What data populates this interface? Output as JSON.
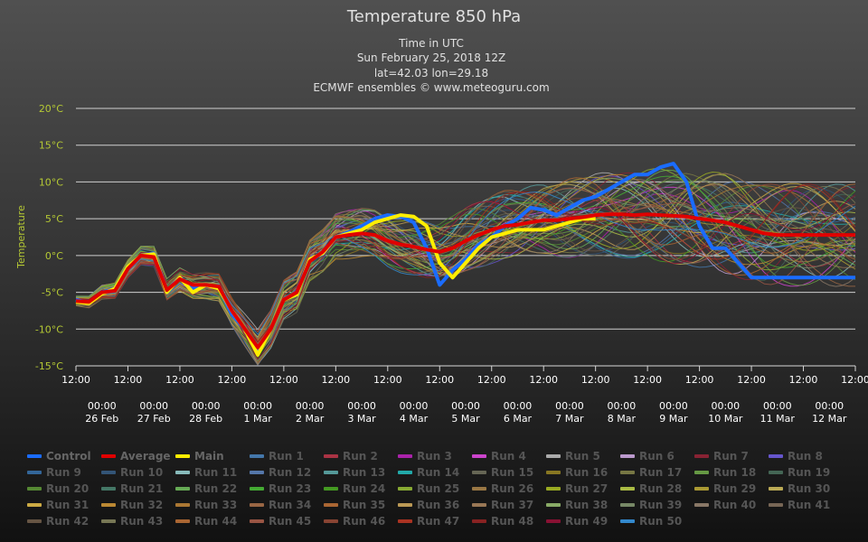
{
  "title": "Temperature 850 hPa",
  "subtitles": [
    "Time in UTC",
    "Sun February 25, 2018 12Z",
    "lat=42.03 lon=29.18",
    "ECMWF ensembles © www.meteoguru.com"
  ],
  "chart_data": {
    "type": "line",
    "ylabel": "Temperature",
    "ylim": [
      -15,
      20
    ],
    "y_ticks": [
      "20°C",
      "15°C",
      "10°C",
      "5°C",
      "0°C",
      "-5°C",
      "-10°C",
      "-15°C"
    ],
    "y_tick_values": [
      20,
      15,
      10,
      5,
      0,
      -5,
      -10,
      -15
    ],
    "x_ticks_top": [
      "12:00",
      "12:00",
      "12:00",
      "12:00",
      "12:00",
      "12:00",
      "12:00",
      "12:00",
      "12:00",
      "12:00",
      "12:00",
      "12:00",
      "12:00",
      "12:00",
      "12:00",
      "12:00"
    ],
    "x_ticks_bottom": [
      [
        "00:00",
        "26 Feb"
      ],
      [
        "00:00",
        "27 Feb"
      ],
      [
        "00:00",
        "28 Feb"
      ],
      [
        "00:00",
        "1 Mar"
      ],
      [
        "00:00",
        "2 Mar"
      ],
      [
        "00:00",
        "3 Mar"
      ],
      [
        "00:00",
        "4 Mar"
      ],
      [
        "00:00",
        "5 Mar"
      ],
      [
        "00:00",
        "6 Mar"
      ],
      [
        "00:00",
        "7 Mar"
      ],
      [
        "00:00",
        "8 Mar"
      ],
      [
        "00:00",
        "9 Mar"
      ],
      [
        "00:00",
        "10 Mar"
      ],
      [
        "00:00",
        "11 Mar"
      ],
      [
        "00:00",
        "12 Mar"
      ]
    ],
    "x_unit": "hours since 25 Feb 12:00 UTC",
    "grid": true,
    "legend_position": "bottom",
    "series": [
      {
        "name": "Control",
        "color": "#1a6cff",
        "x": [
          0,
          6,
          12,
          18,
          24,
          30,
          36,
          42,
          48,
          54,
          60,
          66,
          72,
          78,
          84,
          90,
          96,
          102,
          108,
          114,
          120,
          126,
          132,
          138,
          144,
          150,
          156,
          162,
          168,
          174,
          180,
          186,
          192,
          198,
          204,
          210,
          216,
          222,
          228,
          234,
          240,
          246,
          252,
          258,
          264,
          270,
          276,
          282,
          288,
          294,
          300,
          306,
          312,
          318,
          324,
          330,
          336,
          342,
          348,
          354,
          360
        ],
        "y": [
          -6,
          -6.5,
          -5,
          -4.5,
          -1.5,
          0,
          0.3,
          -4.8,
          -3,
          -4.5,
          -4,
          -4.3,
          -8,
          -10,
          -13,
          -10,
          -6,
          -5,
          -0.5,
          0.2,
          2.5,
          3.2,
          4,
          5,
          5.5,
          5.3,
          4.5,
          1,
          -4,
          -2,
          -0.5,
          1.5,
          2.5,
          4,
          5,
          6.5,
          6.2,
          5.5,
          6.5,
          7.5,
          8,
          9,
          10,
          11,
          11,
          12,
          12.5,
          10,
          4,
          1,
          1,
          -1,
          -3,
          -3,
          -3,
          -3,
          -3,
          -3,
          -3,
          -3,
          -3
        ]
      },
      {
        "name": "Average",
        "color": "#e00000",
        "x": [
          0,
          6,
          12,
          18,
          24,
          30,
          36,
          42,
          48,
          54,
          60,
          66,
          72,
          78,
          84,
          90,
          96,
          102,
          108,
          114,
          120,
          126,
          132,
          138,
          144,
          150,
          156,
          162,
          168,
          174,
          180,
          186,
          192,
          198,
          204,
          210,
          216,
          222,
          228,
          234,
          240,
          246,
          252,
          258,
          264,
          270,
          276,
          282,
          288,
          294,
          300,
          306,
          312,
          318,
          324,
          330,
          336,
          342,
          348,
          354,
          360
        ],
        "y": [
          -6.2,
          -6.3,
          -5,
          -4.8,
          -1.8,
          0,
          -0.2,
          -4.7,
          -3.2,
          -4,
          -4,
          -4.2,
          -7.5,
          -10,
          -12.5,
          -10,
          -6,
          -5,
          -0.8,
          0.5,
          2.5,
          2.8,
          3,
          2.8,
          2,
          1.5,
          1.2,
          0.8,
          0.5,
          1,
          2,
          2.8,
          3.5,
          4,
          4.2,
          4.5,
          4.8,
          4.8,
          5,
          5.2,
          5.5,
          5.6,
          5.6,
          5.5,
          5.6,
          5.5,
          5.4,
          5.3,
          5,
          4.8,
          4.5,
          4,
          3.5,
          3,
          2.8,
          2.8,
          2.8,
          2.8,
          2.8,
          2.8,
          2.8
        ]
      },
      {
        "name": "Main",
        "color": "#ffee00",
        "x": [
          0,
          6,
          12,
          18,
          24,
          30,
          36,
          42,
          48,
          54,
          60,
          66,
          72,
          78,
          84,
          90,
          96,
          102,
          108,
          114,
          120,
          126,
          132,
          138,
          144,
          150,
          156,
          162,
          168,
          174,
          180,
          186,
          192,
          198,
          204,
          210,
          216,
          222,
          228,
          234,
          240
        ],
        "y": [
          -6.3,
          -6.5,
          -5.2,
          -4.5,
          -1.5,
          0,
          0.2,
          -5,
          -3,
          -5,
          -4,
          -4.5,
          -7.5,
          -10,
          -13.5,
          -10,
          -6,
          -5.3,
          -0.5,
          0.3,
          2.5,
          3,
          3.5,
          4.5,
          5,
          5.5,
          5.3,
          4,
          -1,
          -3,
          -1,
          1,
          2.5,
          3,
          3.5,
          3.5,
          3.5,
          4,
          4.5,
          5,
          5
        ]
      },
      {
        "name": "Run 1",
        "color": "#4477aa"
      },
      {
        "name": "Run 2",
        "color": "#aa3344"
      },
      {
        "name": "Run 3",
        "color": "#aa22aa"
      },
      {
        "name": "Run 4",
        "color": "#cc44cc"
      },
      {
        "name": "Run 5",
        "color": "#aaaaaa"
      },
      {
        "name": "Run 6",
        "color": "#bb99cc"
      },
      {
        "name": "Run 7",
        "color": "#882233"
      },
      {
        "name": "Run 8",
        "color": "#6655cc"
      },
      {
        "name": "Run 9",
        "color": "#336699"
      },
      {
        "name": "Run 10",
        "color": "#335577"
      },
      {
        "name": "Run 11",
        "color": "#88bbbb"
      },
      {
        "name": "Run 12",
        "color": "#5577aa"
      },
      {
        "name": "Run 13",
        "color": "#559999"
      },
      {
        "name": "Run 14",
        "color": "#22aaaa"
      },
      {
        "name": "Run 15",
        "color": "#666655"
      },
      {
        "name": "Run 16",
        "color": "#887722"
      },
      {
        "name": "Run 17",
        "color": "#777744"
      },
      {
        "name": "Run 18",
        "color": "#669944"
      },
      {
        "name": "Run 19",
        "color": "#446655"
      },
      {
        "name": "Run 20",
        "color": "#558833"
      },
      {
        "name": "Run 21",
        "color": "#447766"
      },
      {
        "name": "Run 22",
        "color": "#66aa55"
      },
      {
        "name": "Run 23",
        "color": "#44aa33"
      },
      {
        "name": "Run 24",
        "color": "#449922"
      },
      {
        "name": "Run 25",
        "color": "#88aa33"
      },
      {
        "name": "Run 26",
        "color": "#997744"
      },
      {
        "name": "Run 27",
        "color": "#99aa22"
      },
      {
        "name": "Run 28",
        "color": "#aabb44"
      },
      {
        "name": "Run 29",
        "color": "#aa9933"
      },
      {
        "name": "Run 30",
        "color": "#bbaa55"
      },
      {
        "name": "Run 31",
        "color": "#ccaa44"
      },
      {
        "name": "Run 32",
        "color": "#bb8833"
      },
      {
        "name": "Run 33",
        "color": "#aa7733"
      },
      {
        "name": "Run 34",
        "color": "#996644"
      },
      {
        "name": "Run 35",
        "color": "#aa6633"
      },
      {
        "name": "Run 36",
        "color": "#bb9955"
      },
      {
        "name": "Run 37",
        "color": "#997755"
      },
      {
        "name": "Run 38",
        "color": "#88aa66"
      },
      {
        "name": "Run 39",
        "color": "#778866"
      },
      {
        "name": "Run 40",
        "color": "#887766"
      },
      {
        "name": "Run 41",
        "color": "#776655"
      },
      {
        "name": "Run 42",
        "color": "#665544"
      },
      {
        "name": "Run 43",
        "color": "#777755"
      },
      {
        "name": "Run 44",
        "color": "#aa6633"
      },
      {
        "name": "Run 45",
        "color": "#995544"
      },
      {
        "name": "Run 46",
        "color": "#884433"
      },
      {
        "name": "Run 47",
        "color": "#aa3322"
      },
      {
        "name": "Run 48",
        "color": "#882222"
      },
      {
        "name": "Run 49",
        "color": "#881133"
      },
      {
        "name": "Run 50",
        "color": "#3388cc"
      }
    ]
  }
}
